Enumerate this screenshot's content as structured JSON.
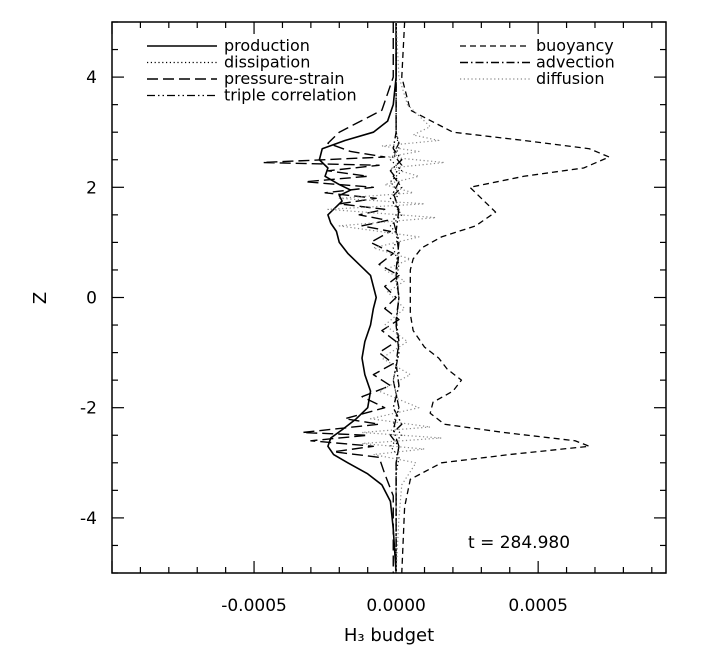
{
  "chart_data": {
    "type": "line",
    "title": "",
    "xlabel": "H₃ budget",
    "ylabel": "Z",
    "xlim": [
      -0.001,
      0.00095
    ],
    "ylim": [
      -5,
      5
    ],
    "x_ticks": [
      -0.0005,
      0.0,
      0.0005
    ],
    "x_tick_labels": [
      "-0.0005",
      "0.0000",
      "0.0005"
    ],
    "y_ticks": [
      -4,
      -2,
      0,
      2,
      4
    ],
    "y_tick_labels": [
      "-4",
      "-2",
      "0",
      "2",
      "4"
    ],
    "grid": false,
    "legend": {
      "left": [
        "production",
        "dissipation",
        "pressure-strain",
        "triple correlation"
      ],
      "right": [
        "buoyancy",
        "advection",
        "diffusion"
      ]
    },
    "annotation": "t = 284.980",
    "series": [
      {
        "name": "production",
        "style": "solid",
        "color": "#000000",
        "points": [
          [
            0.0,
            5.0
          ],
          [
            0.0,
            4.0
          ],
          [
            -1e-05,
            3.5
          ],
          [
            -3e-05,
            3.2
          ],
          [
            -8e-05,
            3.0
          ],
          [
            -0.00018,
            2.85
          ],
          [
            -0.00026,
            2.7
          ],
          [
            -0.00027,
            2.5
          ],
          [
            -0.00024,
            2.35
          ],
          [
            -0.00025,
            2.2
          ],
          [
            -0.0002,
            2.05
          ],
          [
            -0.00016,
            1.95
          ],
          [
            -0.0002,
            1.85
          ],
          [
            -0.00019,
            1.75
          ],
          [
            -0.00022,
            1.6
          ],
          [
            -0.00024,
            1.5
          ],
          [
            -0.00023,
            1.35
          ],
          [
            -0.00021,
            1.2
          ],
          [
            -0.0002,
            1.0
          ],
          [
            -0.00017,
            0.8
          ],
          [
            -0.00013,
            0.6
          ],
          [
            -9e-05,
            0.4
          ],
          [
            -8e-05,
            0.2
          ],
          [
            -7e-05,
            0.0
          ],
          [
            -8e-05,
            -0.2
          ],
          [
            -9e-05,
            -0.5
          ],
          [
            -0.00011,
            -0.8
          ],
          [
            -0.00012,
            -1.1
          ],
          [
            -0.00011,
            -1.4
          ],
          [
            -9e-05,
            -1.7
          ],
          [
            -0.0001,
            -2.0
          ],
          [
            -0.00014,
            -2.2
          ],
          [
            -0.00019,
            -2.4
          ],
          [
            -0.00023,
            -2.55
          ],
          [
            -0.00024,
            -2.7
          ],
          [
            -0.00022,
            -2.85
          ],
          [
            -0.00017,
            -3.0
          ],
          [
            -0.0001,
            -3.2
          ],
          [
            -5e-05,
            -3.4
          ],
          [
            -2e-05,
            -3.7
          ],
          [
            -1e-05,
            -4.2
          ],
          [
            0.0,
            -5.0
          ]
        ]
      },
      {
        "name": "dissipation",
        "style": "dotted",
        "color": "#000000",
        "points": [
          [
            0.0,
            5.0
          ],
          [
            0.0,
            3.0
          ],
          [
            1e-05,
            2.7
          ],
          [
            -2e-05,
            2.5
          ],
          [
            2e-05,
            2.3
          ],
          [
            -2e-05,
            2.1
          ],
          [
            1e-05,
            1.9
          ],
          [
            -1e-05,
            1.7
          ],
          [
            2e-05,
            1.5
          ],
          [
            -2e-05,
            1.3
          ],
          [
            1e-05,
            1.1
          ],
          [
            -1e-05,
            0.9
          ],
          [
            1e-05,
            0.6
          ],
          [
            0.0,
            0.3
          ],
          [
            1e-05,
            0.0
          ],
          [
            0.0,
            -0.5
          ],
          [
            1e-05,
            -1.0
          ],
          [
            -1e-05,
            -1.5
          ],
          [
            1e-05,
            -2.0
          ],
          [
            -1e-05,
            -2.3
          ],
          [
            2e-05,
            -2.5
          ],
          [
            -2e-05,
            -2.7
          ],
          [
            1e-05,
            -2.9
          ],
          [
            0.0,
            -3.2
          ],
          [
            0.0,
            -5.0
          ]
        ]
      },
      {
        "name": "pressure-strain",
        "style": "longdash",
        "color": "#000000",
        "points": [
          [
            -1e-05,
            5.0
          ],
          [
            -1e-05,
            4.0
          ],
          [
            -5e-05,
            3.4
          ],
          [
            -0.0002,
            3.0
          ],
          [
            -0.00024,
            2.8
          ],
          [
            -0.00016,
            2.65
          ],
          [
            -4e-05,
            2.55
          ],
          [
            -0.00047,
            2.45
          ],
          [
            -6e-05,
            2.4
          ],
          [
            -0.00024,
            2.3
          ],
          [
            -0.0001,
            2.2
          ],
          [
            -0.00032,
            2.1
          ],
          [
            -8e-05,
            2.0
          ],
          [
            -0.00025,
            1.9
          ],
          [
            -7e-05,
            1.8
          ],
          [
            -0.0002,
            1.7
          ],
          [
            -4e-05,
            1.6
          ],
          [
            -0.00013,
            1.5
          ],
          [
            -3e-05,
            1.4
          ],
          [
            -0.00012,
            1.3
          ],
          [
            -2e-05,
            1.2
          ],
          [
            -9e-05,
            1.0
          ],
          [
            -1e-05,
            0.8
          ],
          [
            -6e-05,
            0.6
          ],
          [
            1e-05,
            0.4
          ],
          [
            -4e-05,
            0.2
          ],
          [
            0.0,
            0.0
          ],
          [
            -4e-05,
            -0.2
          ],
          [
            1e-05,
            -0.4
          ],
          [
            -5e-05,
            -0.6
          ],
          [
            0.0,
            -0.8
          ],
          [
            -6e-05,
            -1.0
          ],
          [
            -1e-05,
            -1.2
          ],
          [
            -8e-05,
            -1.4
          ],
          [
            -2e-05,
            -1.6
          ],
          [
            -0.00012,
            -1.8
          ],
          [
            -4e-05,
            -2.0
          ],
          [
            -0.00018,
            -2.2
          ],
          [
            -6e-05,
            -2.3
          ],
          [
            -0.00033,
            -2.45
          ],
          [
            -0.0001,
            -2.5
          ],
          [
            -0.0003,
            -2.6
          ],
          [
            -8e-05,
            -2.7
          ],
          [
            -0.00022,
            -2.8
          ],
          [
            -6e-05,
            -2.9
          ],
          [
            -4e-05,
            -3.2
          ],
          [
            -1e-05,
            -3.6
          ],
          [
            -1e-05,
            -5.0
          ]
        ]
      },
      {
        "name": "triple correlation",
        "style": "dashdotdot",
        "color": "#000000",
        "points": [
          [
            0.0,
            5.0
          ],
          [
            0.0,
            3.0
          ],
          [
            1e-05,
            2.8
          ],
          [
            -1e-05,
            2.6
          ],
          [
            2e-05,
            2.4
          ],
          [
            -1e-05,
            2.2
          ],
          [
            2e-05,
            2.0
          ],
          [
            -2e-05,
            1.8
          ],
          [
            1e-05,
            1.6
          ],
          [
            -1e-05,
            1.4
          ],
          [
            1e-05,
            1.0
          ],
          [
            0.0,
            0.5
          ],
          [
            1e-05,
            0.0
          ],
          [
            0.0,
            -0.5
          ],
          [
            1e-05,
            -1.0
          ],
          [
            -1e-05,
            -1.5
          ],
          [
            1e-05,
            -2.0
          ],
          [
            -1e-05,
            -2.4
          ],
          [
            1e-05,
            -2.7
          ],
          [
            0.0,
            -3.0
          ],
          [
            0.0,
            -5.0
          ]
        ]
      },
      {
        "name": "buoyancy",
        "style": "dashed",
        "color": "#000000",
        "points": [
          [
            3e-05,
            5.0
          ],
          [
            2e-05,
            4.0
          ],
          [
            5e-05,
            3.4
          ],
          [
            0.0002,
            3.0
          ],
          [
            0.00045,
            2.85
          ],
          [
            0.00068,
            2.7
          ],
          [
            0.00075,
            2.55
          ],
          [
            0.00066,
            2.35
          ],
          [
            0.00045,
            2.2
          ],
          [
            0.00026,
            2.0
          ],
          [
            0.0003,
            1.8
          ],
          [
            0.00035,
            1.55
          ],
          [
            0.00028,
            1.3
          ],
          [
            0.00016,
            1.1
          ],
          [
            9e-05,
            0.9
          ],
          [
            6e-05,
            0.7
          ],
          [
            5e-05,
            0.5
          ],
          [
            5e-05,
            0.2
          ],
          [
            5e-05,
            0.0
          ],
          [
            5e-05,
            -0.3
          ],
          [
            6e-05,
            -0.6
          ],
          [
            0.0001,
            -0.9
          ],
          [
            0.00015,
            -1.1
          ],
          [
            0.00018,
            -1.3
          ],
          [
            0.00023,
            -1.5
          ],
          [
            0.0002,
            -1.7
          ],
          [
            0.00013,
            -1.9
          ],
          [
            0.00012,
            -2.1
          ],
          [
            0.00017,
            -2.3
          ],
          [
            0.00038,
            -2.45
          ],
          [
            0.00063,
            -2.6
          ],
          [
            0.00068,
            -2.7
          ],
          [
            0.0004,
            -2.85
          ],
          [
            0.00016,
            -3.0
          ],
          [
            5e-05,
            -3.3
          ],
          [
            3e-05,
            -3.8
          ],
          [
            2e-05,
            -5.0
          ]
        ]
      },
      {
        "name": "advection",
        "style": "dashdot",
        "color": "#000000",
        "points": [
          [
            0.0,
            5.0
          ],
          [
            0.0,
            3.0
          ],
          [
            -1e-05,
            2.7
          ],
          [
            2e-05,
            2.5
          ],
          [
            -2e-05,
            2.3
          ],
          [
            1e-05,
            2.1
          ],
          [
            -1e-05,
            1.9
          ],
          [
            1e-05,
            1.6
          ],
          [
            0.0,
            1.2
          ],
          [
            1e-05,
            0.8
          ],
          [
            0.0,
            0.4
          ],
          [
            1e-05,
            0.0
          ],
          [
            0.0,
            -0.4
          ],
          [
            1e-05,
            -0.8
          ],
          [
            0.0,
            -1.2
          ],
          [
            1e-05,
            -1.6
          ],
          [
            -1e-05,
            -2.0
          ],
          [
            2e-05,
            -2.3
          ],
          [
            -2e-05,
            -2.5
          ],
          [
            1e-05,
            -2.7
          ],
          [
            0.0,
            -3.0
          ],
          [
            0.0,
            -5.0
          ]
        ]
      },
      {
        "name": "diffusion",
        "style": "dotted",
        "color": "#888888",
        "points": [
          [
            0.0,
            5.0
          ],
          [
            1e-05,
            4.0
          ],
          [
            4e-05,
            3.5
          ],
          [
            0.00012,
            3.1
          ],
          [
            6e-05,
            2.95
          ],
          [
            0.00015,
            2.85
          ],
          [
            -5e-05,
            2.75
          ],
          [
            8e-05,
            2.65
          ],
          [
            -3e-05,
            2.55
          ],
          [
            0.00017,
            2.45
          ],
          [
            -2e-05,
            2.35
          ],
          [
            8e-05,
            2.2
          ],
          [
            -4e-05,
            2.05
          ],
          [
            6e-05,
            1.9
          ],
          [
            -0.0002,
            1.8
          ],
          [
            0.0001,
            1.7
          ],
          [
            -0.00024,
            1.6
          ],
          [
            0.00014,
            1.45
          ],
          [
            -0.0002,
            1.3
          ],
          [
            8e-05,
            1.1
          ],
          [
            -8e-05,
            0.9
          ],
          [
            5e-05,
            0.7
          ],
          [
            -4e-05,
            0.5
          ],
          [
            3e-05,
            0.3
          ],
          [
            -3e-05,
            0.1
          ],
          [
            3e-05,
            -0.2
          ],
          [
            -4e-05,
            -0.5
          ],
          [
            4e-05,
            -0.8
          ],
          [
            -5e-05,
            -1.1
          ],
          [
            5e-05,
            -1.4
          ],
          [
            -6e-05,
            -1.7
          ],
          [
            8e-05,
            -2.0
          ],
          [
            -9e-05,
            -2.2
          ],
          [
            0.00012,
            -2.35
          ],
          [
            -0.00012,
            -2.45
          ],
          [
            0.00016,
            -2.55
          ],
          [
            -0.00012,
            -2.65
          ],
          [
            0.0001,
            -2.75
          ],
          [
            -8e-05,
            -2.85
          ],
          [
            7e-05,
            -3.0
          ],
          [
            2e-05,
            -3.4
          ],
          [
            1e-05,
            -4.0
          ],
          [
            0.0,
            -5.0
          ]
        ]
      }
    ]
  }
}
